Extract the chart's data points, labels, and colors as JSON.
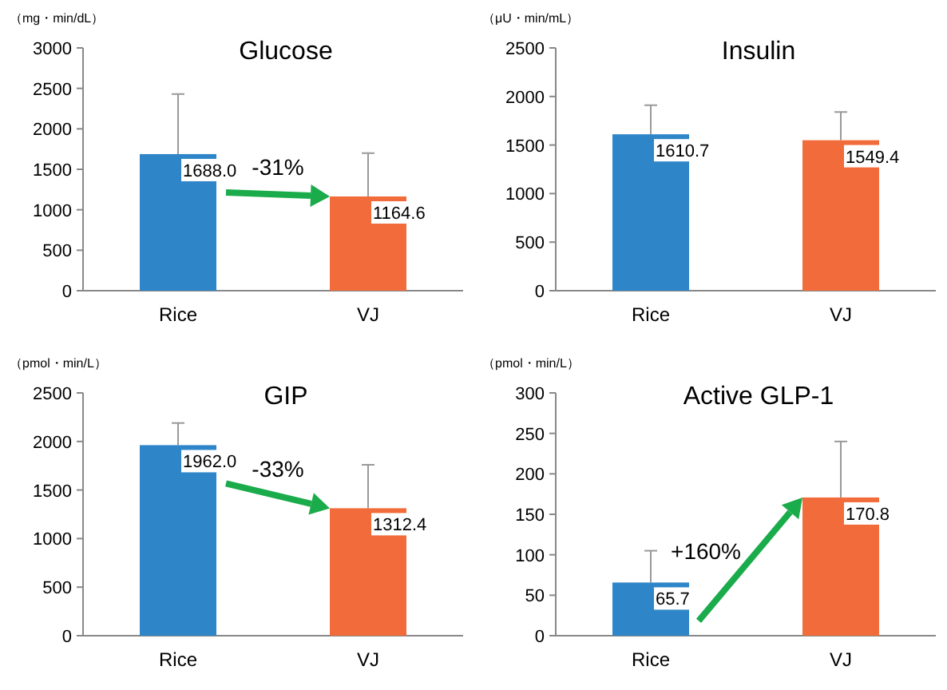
{
  "chart_data": [
    {
      "type": "bar",
      "title": "Glucose",
      "ylabel": "（mg・min/dL）",
      "categories": [
        "Rice",
        "VJ"
      ],
      "values": [
        1688.0,
        1164.6
      ],
      "colors": [
        "#2e86c8",
        "#f26b3a"
      ],
      "errors": [
        [
          1688.0,
          2430
        ],
        [
          1164.6,
          1700
        ]
      ],
      "ylim": [
        0,
        3000
      ],
      "yticks": [
        0,
        500,
        1000,
        1500,
        2000,
        2500,
        3000
      ],
      "value_labels": [
        "1688.0",
        "1164.6"
      ],
      "annotations": [
        "-31%"
      ],
      "grid": false,
      "legend": false
    },
    {
      "type": "bar",
      "title": "Insulin",
      "ylabel": "（μU・min/mL）",
      "categories": [
        "Rice",
        "VJ"
      ],
      "values": [
        1610.7,
        1549.4
      ],
      "colors": [
        "#2e86c8",
        "#f26b3a"
      ],
      "errors": [
        [
          1610.7,
          1910
        ],
        [
          1549.4,
          1840
        ]
      ],
      "ylim": [
        0,
        2500
      ],
      "yticks": [
        0,
        500,
        1000,
        1500,
        2000,
        2500
      ],
      "value_labels": [
        "1610.7",
        "1549.4"
      ],
      "grid": false,
      "legend": false
    },
    {
      "type": "bar",
      "title": "GIP",
      "ylabel": "（pmol・min/L）",
      "categories": [
        "Rice",
        "VJ"
      ],
      "values": [
        1962.0,
        1312.4
      ],
      "colors": [
        "#2e86c8",
        "#f26b3a"
      ],
      "errors": [
        [
          1962.0,
          2190
        ],
        [
          1312.4,
          1760
        ]
      ],
      "ylim": [
        0,
        2500
      ],
      "yticks": [
        0,
        500,
        1000,
        1500,
        2000,
        2500
      ],
      "value_labels": [
        "1962.0",
        "1312.4"
      ],
      "annotations": [
        "-33%"
      ],
      "grid": false,
      "legend": false
    },
    {
      "type": "bar",
      "title": "Active GLP-1",
      "ylabel": "（pmol・min/L）",
      "categories": [
        "Rice",
        "VJ"
      ],
      "values": [
        65.7,
        170.8
      ],
      "colors": [
        "#2e86c8",
        "#f26b3a"
      ],
      "errors": [
        [
          65.7,
          105
        ],
        [
          170.8,
          240
        ]
      ],
      "ylim": [
        0,
        300
      ],
      "yticks": [
        0,
        50,
        100,
        150,
        200,
        250,
        300
      ],
      "value_labels": [
        "65.7",
        "170.8"
      ],
      "annotations": [
        "+160%"
      ],
      "grid": false,
      "legend": false
    }
  ]
}
